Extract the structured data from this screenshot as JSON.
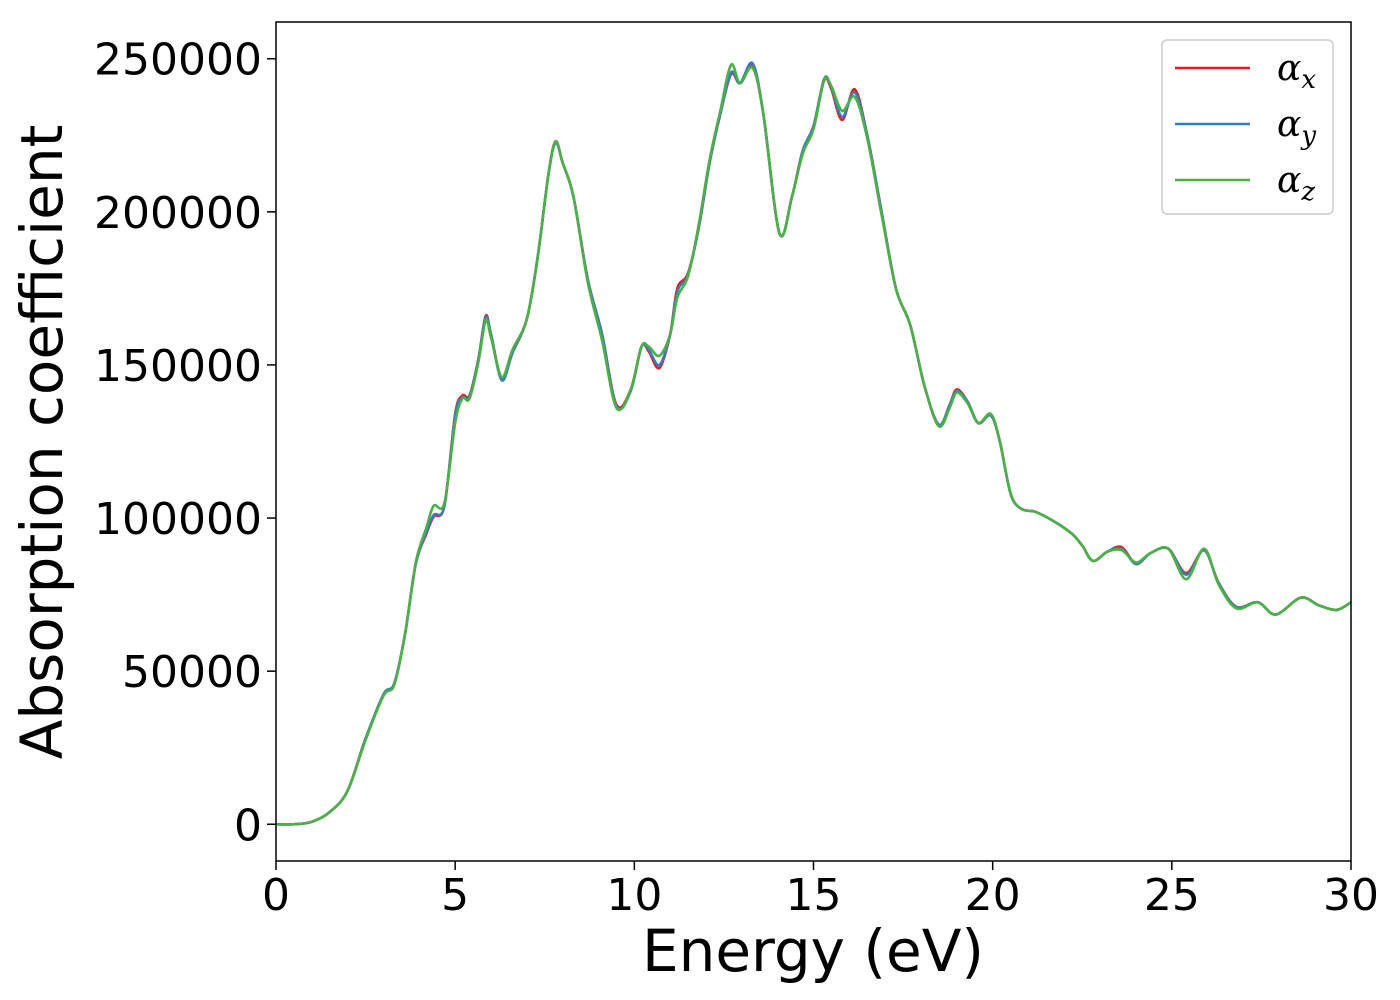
{
  "chart_data": {
    "type": "line",
    "title": "",
    "xlabel": "Energy (eV)",
    "ylabel": "Absorption coefficient",
    "xlim": [
      0,
      30
    ],
    "ylim": [
      -12000,
      262000
    ],
    "xticks": [
      0,
      5,
      10,
      15,
      20,
      25,
      30
    ],
    "yticks": [
      0,
      50000,
      100000,
      150000,
      200000,
      250000
    ],
    "grid": false,
    "legend_position": "top-right",
    "series": [
      {
        "name": "α",
        "sub": "x",
        "color": "#e41a1c",
        "points": [
          [
            0,
            0
          ],
          [
            0.5,
            0
          ],
          [
            1,
            800
          ],
          [
            1.5,
            4000
          ],
          [
            2,
            11000
          ],
          [
            2.5,
            28000
          ],
          [
            3,
            42000
          ],
          [
            3.3,
            46000
          ],
          [
            3.6,
            62000
          ],
          [
            3.9,
            85000
          ],
          [
            4.2,
            95000
          ],
          [
            4.4,
            100500
          ],
          [
            4.7,
            104000
          ],
          [
            5,
            134000
          ],
          [
            5.2,
            140000
          ],
          [
            5.4,
            140000
          ],
          [
            5.65,
            152000
          ],
          [
            5.85,
            166000
          ],
          [
            6,
            160000
          ],
          [
            6.3,
            145500
          ],
          [
            6.6,
            154000
          ],
          [
            7,
            165000
          ],
          [
            7.3,
            185000
          ],
          [
            7.6,
            212000
          ],
          [
            7.8,
            223000
          ],
          [
            8,
            216000
          ],
          [
            8.3,
            205000
          ],
          [
            8.7,
            178000
          ],
          [
            9.1,
            160000
          ],
          [
            9.5,
            137000
          ],
          [
            9.9,
            142000
          ],
          [
            10.2,
            156000
          ],
          [
            10.4,
            154500
          ],
          [
            10.7,
            149000
          ],
          [
            11,
            160000
          ],
          [
            11.2,
            175000
          ],
          [
            11.5,
            180000
          ],
          [
            11.8,
            195000
          ],
          [
            12.1,
            216000
          ],
          [
            12.4,
            232000
          ],
          [
            12.7,
            245000
          ],
          [
            12.95,
            242000
          ],
          [
            13.3,
            248000
          ],
          [
            13.6,
            232000
          ],
          [
            14.05,
            193000
          ],
          [
            14.4,
            205000
          ],
          [
            14.7,
            220000
          ],
          [
            15,
            228000
          ],
          [
            15.3,
            243000
          ],
          [
            15.5,
            240000
          ],
          [
            15.8,
            230000
          ],
          [
            16.15,
            240000
          ],
          [
            16.5,
            225000
          ],
          [
            16.9,
            200000
          ],
          [
            17.3,
            175000
          ],
          [
            17.7,
            163000
          ],
          [
            18.1,
            143000
          ],
          [
            18.5,
            130000
          ],
          [
            18.8,
            137000
          ],
          [
            19,
            142000
          ],
          [
            19.3,
            138000
          ],
          [
            19.6,
            131000
          ],
          [
            19.95,
            133500
          ],
          [
            20.2,
            125000
          ],
          [
            20.5,
            108000
          ],
          [
            20.8,
            103000
          ],
          [
            21.2,
            102000
          ],
          [
            21.7,
            99000
          ],
          [
            22.2,
            95000
          ],
          [
            22.5,
            91000
          ],
          [
            22.8,
            86000
          ],
          [
            23.2,
            89000
          ],
          [
            23.6,
            90500
          ],
          [
            24,
            85000
          ],
          [
            24.4,
            88500
          ],
          [
            24.9,
            90000
          ],
          [
            25.4,
            82000
          ],
          [
            25.9,
            89500
          ],
          [
            26.3,
            79000
          ],
          [
            26.8,
            71000
          ],
          [
            27.4,
            72500
          ],
          [
            27.9,
            68500
          ],
          [
            28.6,
            74000
          ],
          [
            29.1,
            71500
          ],
          [
            29.6,
            70000
          ],
          [
            30,
            72500
          ]
        ]
      },
      {
        "name": "α",
        "sub": "y",
        "color": "#377eb8",
        "points": [
          [
            0,
            0
          ],
          [
            0.5,
            0
          ],
          [
            1,
            800
          ],
          [
            1.5,
            4000
          ],
          [
            2,
            11000
          ],
          [
            2.5,
            28000
          ],
          [
            3,
            42500
          ],
          [
            3.3,
            46000
          ],
          [
            3.6,
            62000
          ],
          [
            3.9,
            85000
          ],
          [
            4.2,
            95500
          ],
          [
            4.4,
            101000
          ],
          [
            4.7,
            104000
          ],
          [
            5,
            133500
          ],
          [
            5.2,
            139500
          ],
          [
            5.4,
            139500
          ],
          [
            5.65,
            152000
          ],
          [
            5.85,
            165500
          ],
          [
            6,
            160000
          ],
          [
            6.3,
            145000
          ],
          [
            6.6,
            154000
          ],
          [
            7,
            165000
          ],
          [
            7.3,
            185000
          ],
          [
            7.6,
            212000
          ],
          [
            7.8,
            222500
          ],
          [
            8,
            216000
          ],
          [
            8.3,
            205000
          ],
          [
            8.7,
            178000
          ],
          [
            9.1,
            160000
          ],
          [
            9.5,
            136500
          ],
          [
            9.9,
            141500
          ],
          [
            10.2,
            156000
          ],
          [
            10.4,
            155000
          ],
          [
            10.7,
            150000
          ],
          [
            11,
            160000
          ],
          [
            11.2,
            174000
          ],
          [
            11.5,
            179500
          ],
          [
            11.8,
            195000
          ],
          [
            12.1,
            216000
          ],
          [
            12.4,
            232000
          ],
          [
            12.7,
            245500
          ],
          [
            12.95,
            242000
          ],
          [
            13.3,
            248500
          ],
          [
            13.6,
            232000
          ],
          [
            14.05,
            193000
          ],
          [
            14.4,
            205000
          ],
          [
            14.7,
            220000
          ],
          [
            15,
            228000
          ],
          [
            15.3,
            243500
          ],
          [
            15.5,
            240500
          ],
          [
            15.8,
            231000
          ],
          [
            16.15,
            239000
          ],
          [
            16.5,
            225000
          ],
          [
            16.9,
            200000
          ],
          [
            17.3,
            175000
          ],
          [
            17.7,
            163000
          ],
          [
            18.1,
            143000
          ],
          [
            18.5,
            130500
          ],
          [
            18.8,
            137000
          ],
          [
            19,
            141500
          ],
          [
            19.3,
            138000
          ],
          [
            19.6,
            131000
          ],
          [
            19.95,
            133500
          ],
          [
            20.2,
            125000
          ],
          [
            20.5,
            108000
          ],
          [
            20.8,
            103000
          ],
          [
            21.2,
            102000
          ],
          [
            21.7,
            99000
          ],
          [
            22.2,
            95000
          ],
          [
            22.5,
            91000
          ],
          [
            22.8,
            86000
          ],
          [
            23.2,
            89000
          ],
          [
            23.6,
            90000
          ],
          [
            24,
            85000
          ],
          [
            24.4,
            88500
          ],
          [
            24.9,
            90000
          ],
          [
            25.4,
            81500
          ],
          [
            25.9,
            89500
          ],
          [
            26.3,
            79000
          ],
          [
            26.8,
            71000
          ],
          [
            27.4,
            72500
          ],
          [
            27.9,
            68500
          ],
          [
            28.6,
            74000
          ],
          [
            29.1,
            71500
          ],
          [
            29.6,
            70000
          ],
          [
            30,
            72500
          ]
        ]
      },
      {
        "name": "α",
        "sub": "z",
        "color": "#4daf4a",
        "points": [
          [
            0,
            0
          ],
          [
            0.5,
            0
          ],
          [
            1,
            800
          ],
          [
            1.5,
            4000
          ],
          [
            2,
            11000
          ],
          [
            2.5,
            27500
          ],
          [
            3,
            42000
          ],
          [
            3.3,
            45500
          ],
          [
            3.6,
            62000
          ],
          [
            3.9,
            85500
          ],
          [
            4.2,
            97000
          ],
          [
            4.4,
            104000
          ],
          [
            4.7,
            105000
          ],
          [
            5,
            131000
          ],
          [
            5.2,
            139000
          ],
          [
            5.4,
            139000
          ],
          [
            5.65,
            151000
          ],
          [
            5.85,
            164500
          ],
          [
            6,
            159000
          ],
          [
            6.3,
            146000
          ],
          [
            6.6,
            155000
          ],
          [
            7,
            165000
          ],
          [
            7.3,
            185000
          ],
          [
            7.6,
            212000
          ],
          [
            7.8,
            223000
          ],
          [
            8,
            216000
          ],
          [
            8.3,
            205000
          ],
          [
            8.7,
            177000
          ],
          [
            9.1,
            158000
          ],
          [
            9.5,
            136000
          ],
          [
            9.9,
            142000
          ],
          [
            10.2,
            156000
          ],
          [
            10.4,
            156000
          ],
          [
            10.7,
            153000
          ],
          [
            11,
            160000
          ],
          [
            11.2,
            172000
          ],
          [
            11.5,
            179000
          ],
          [
            11.8,
            196000
          ],
          [
            12.1,
            217000
          ],
          [
            12.4,
            233000
          ],
          [
            12.7,
            248000
          ],
          [
            12.95,
            242000
          ],
          [
            13.3,
            247000
          ],
          [
            13.6,
            232000
          ],
          [
            14.05,
            193000
          ],
          [
            14.4,
            205000
          ],
          [
            14.7,
            219000
          ],
          [
            15,
            227000
          ],
          [
            15.3,
            243000
          ],
          [
            15.5,
            241000
          ],
          [
            15.8,
            233000
          ],
          [
            16.15,
            237500
          ],
          [
            16.5,
            224000
          ],
          [
            16.9,
            199000
          ],
          [
            17.3,
            175000
          ],
          [
            17.7,
            163000
          ],
          [
            18.1,
            143000
          ],
          [
            18.5,
            130000
          ],
          [
            18.8,
            136000
          ],
          [
            19,
            141000
          ],
          [
            19.3,
            137500
          ],
          [
            19.6,
            131000
          ],
          [
            19.95,
            134000
          ],
          [
            20.2,
            125000
          ],
          [
            20.5,
            108000
          ],
          [
            20.8,
            103000
          ],
          [
            21.2,
            102000
          ],
          [
            21.7,
            99000
          ],
          [
            22.2,
            95000
          ],
          [
            22.5,
            91000
          ],
          [
            22.8,
            86000
          ],
          [
            23.2,
            89000
          ],
          [
            23.6,
            89500
          ],
          [
            24,
            85500
          ],
          [
            24.4,
            88500
          ],
          [
            24.9,
            90000
          ],
          [
            25.4,
            80000
          ],
          [
            25.9,
            90000
          ],
          [
            26.3,
            78500
          ],
          [
            26.8,
            70500
          ],
          [
            27.4,
            72500
          ],
          [
            27.9,
            68500
          ],
          [
            28.6,
            74000
          ],
          [
            29.1,
            71500
          ],
          [
            29.6,
            70000
          ],
          [
            30,
            72500
          ]
        ]
      }
    ]
  }
}
